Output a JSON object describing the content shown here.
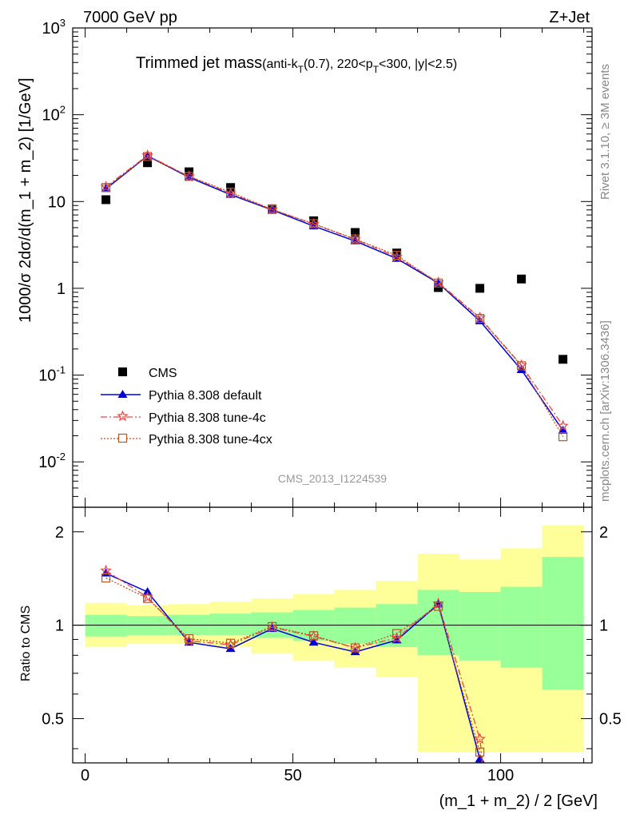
{
  "header": {
    "left": "7000 GeV pp",
    "right": "Z+Jet"
  },
  "side_labels": {
    "rivet": "Rivet 3.1.10, ≥ 3M events",
    "mcplots": "mcplots.cern.ch [arXiv:1306.3436]"
  },
  "chart_data": [
    {
      "type": "scatter",
      "title": "Trimmed jet mass",
      "subtitle": "(anti-k_T(0.7), 220<p_T<300, |y|<2.5)",
      "watermark": "CMS_2013_I1224539",
      "ylabel": "1000/σ 2dσ/d(m_1 + m_2) [1/GeV]",
      "yscale": "log",
      "ylim": [
        0.003,
        1000
      ],
      "xlim": [
        -3,
        122
      ],
      "ytick_labels": [
        "10^3",
        "10^2",
        "10",
        "1",
        "10^-1",
        "10^-2"
      ],
      "legend_position": "lower-left",
      "x": [
        5,
        15,
        25,
        35,
        45,
        55,
        65,
        75,
        85,
        95,
        105,
        115
      ],
      "series": [
        {
          "name": "CMS",
          "style": "data",
          "color": "#000000",
          "marker": "square",
          "values": [
            10.5,
            28,
            22,
            14.5,
            8.2,
            6.0,
            4.4,
            2.55,
            1.02,
            1.0,
            1.28,
            0.152
          ]
        },
        {
          "name": "Pythia 8.308 default",
          "style": "solid",
          "color": "#0000dd",
          "marker": "triangle",
          "values": [
            14.0,
            33.5,
            19.0,
            12.0,
            8.0,
            5.2,
            3.5,
            2.2,
            1.15,
            0.42,
            0.115,
            0.023
          ]
        },
        {
          "name": "Pythia 8.308 tune-4c",
          "style": "dashdot",
          "color": "#ee4444",
          "marker": "star",
          "values": [
            14.8,
            34.0,
            19.5,
            12.4,
            8.1,
            5.5,
            3.65,
            2.3,
            1.17,
            0.46,
            0.13,
            0.026
          ]
        },
        {
          "name": "Pythia 8.308 tune-4cx",
          "style": "dotted",
          "color": "#bb5522",
          "marker": "open-square",
          "values": [
            14.5,
            33.0,
            19.5,
            12.8,
            8.1,
            5.55,
            3.7,
            2.4,
            1.15,
            0.45,
            0.128,
            0.0195
          ]
        }
      ]
    },
    {
      "type": "line",
      "ylabel": "Ratio to CMS",
      "xlabel": "(m_1 + m_2) / 2 [GeV]",
      "yscale": "log",
      "ylim": [
        0.36,
        2.4
      ],
      "xlim": [
        -3,
        122
      ],
      "yticks": [
        0.5,
        1,
        2
      ],
      "ytick_labels": [
        "0.5",
        "1",
        "2"
      ],
      "xticks": [
        0,
        50,
        100
      ],
      "xtick_labels": [
        "0",
        "50",
        "100"
      ],
      "bands": {
        "x_edges": [
          0,
          10,
          20,
          30,
          40,
          50,
          60,
          70,
          80,
          90,
          100,
          110,
          120
        ],
        "green_lo": [
          0.92,
          0.93,
          0.93,
          0.93,
          0.91,
          0.89,
          0.87,
          0.85,
          0.8,
          0.77,
          0.73,
          0.62
        ],
        "green_hi": [
          1.08,
          1.07,
          1.08,
          1.09,
          1.1,
          1.12,
          1.14,
          1.17,
          1.3,
          1.28,
          1.33,
          1.66
        ],
        "yellow_lo": [
          0.85,
          0.87,
          0.87,
          0.85,
          0.81,
          0.77,
          0.73,
          0.68,
          0.39,
          0.39,
          0.39,
          0.39
        ],
        "yellow_hi": [
          1.18,
          1.16,
          1.17,
          1.19,
          1.22,
          1.26,
          1.3,
          1.39,
          1.7,
          1.63,
          1.77,
          2.1
        ],
        "green_color": "#99ff99",
        "yellow_color": "#ffff99"
      },
      "x": [
        5,
        15,
        25,
        35,
        45,
        55,
        65,
        75,
        85,
        95
      ],
      "series": [
        {
          "name": "Pythia 8.308 default",
          "color": "#0000dd",
          "style": "solid",
          "marker": "triangle",
          "values": [
            1.47,
            1.28,
            0.88,
            0.84,
            0.975,
            0.88,
            0.82,
            0.895,
            1.17,
            0.37
          ]
        },
        {
          "name": "Pythia 8.308 tune-4c",
          "color": "#ee4444",
          "style": "dashdot",
          "marker": "star",
          "values": [
            1.5,
            1.23,
            0.89,
            0.865,
            0.985,
            0.92,
            0.845,
            0.91,
            1.175,
            0.43
          ]
        },
        {
          "name": "Pythia 8.308 tune-4cx",
          "color": "#bb5522",
          "style": "dotted",
          "marker": "open-square",
          "values": [
            1.42,
            1.22,
            0.905,
            0.875,
            0.99,
            0.925,
            0.845,
            0.94,
            1.15,
            0.39
          ]
        }
      ]
    }
  ]
}
